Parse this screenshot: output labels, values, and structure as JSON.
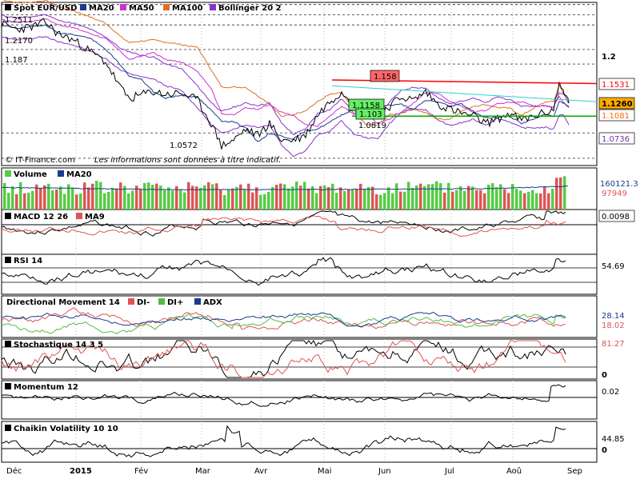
{
  "chart_data": {
    "type": "line",
    "title": "Spot EUR/USD",
    "watermark": "© IT-Finance.com",
    "disclaimer": "Les informations sont données à titre indicatif.",
    "months": [
      "Déc",
      "2015",
      "Fév",
      "Mar",
      "Avr",
      "Mai",
      "Jun",
      "Jul",
      "Aoû",
      "Sep"
    ],
    "price_panel": {
      "legend": [
        "Spot EUR/USD",
        "MA20",
        "MA50",
        "MA100",
        "Bollinger 20 2"
      ],
      "scale_labels": [
        "1.2"
      ],
      "resistance": 1.1531,
      "support": 1.1081,
      "last": 1.126,
      "level_labels": [
        "1.2511",
        "1.2170",
        "1.187",
        "1.1158",
        "1.103",
        "1.0819",
        "1.0572",
        "1.158"
      ],
      "axis_tags": [
        "1.1531",
        "1.1260",
        "1.1081",
        "1.0736"
      ]
    },
    "volume_panel": {
      "legend": [
        "Volume",
        "MA20"
      ],
      "values": [
        "160121.3",
        "97949"
      ]
    },
    "macd_panel": {
      "legend": [
        "MACD 12 26",
        "MA9"
      ],
      "value": "0.0098"
    },
    "rsi_panel": {
      "legend": [
        "RSI 14"
      ],
      "value": "54.69"
    },
    "dm_panel": {
      "legend": [
        "Directional Movement 14",
        "DI-",
        "DI+",
        "ADX"
      ],
      "values": [
        "28.14",
        "18.02"
      ]
    },
    "stoch_panel": {
      "legend": [
        "Stochastique 14 3 5"
      ],
      "values": [
        "81.27",
        "0"
      ]
    },
    "momentum_panel": {
      "legend": [
        "Momentum 12"
      ],
      "value": "0.02"
    },
    "chaikin_panel": {
      "legend": [
        "Chaikin Volatility 10 10"
      ],
      "values": [
        "44.85",
        "0"
      ]
    },
    "series_colors": {
      "price": "#000000",
      "ma20": "#1a3c8c",
      "ma50": "#cc33cc",
      "ma100": "#e07020",
      "bollinger": "#8833cc",
      "resistance": "#ff0000",
      "support": "#00aa00",
      "volume_up": "#55cc44",
      "volume_down": "#dd5555",
      "signal": "#dd5555"
    }
  }
}
